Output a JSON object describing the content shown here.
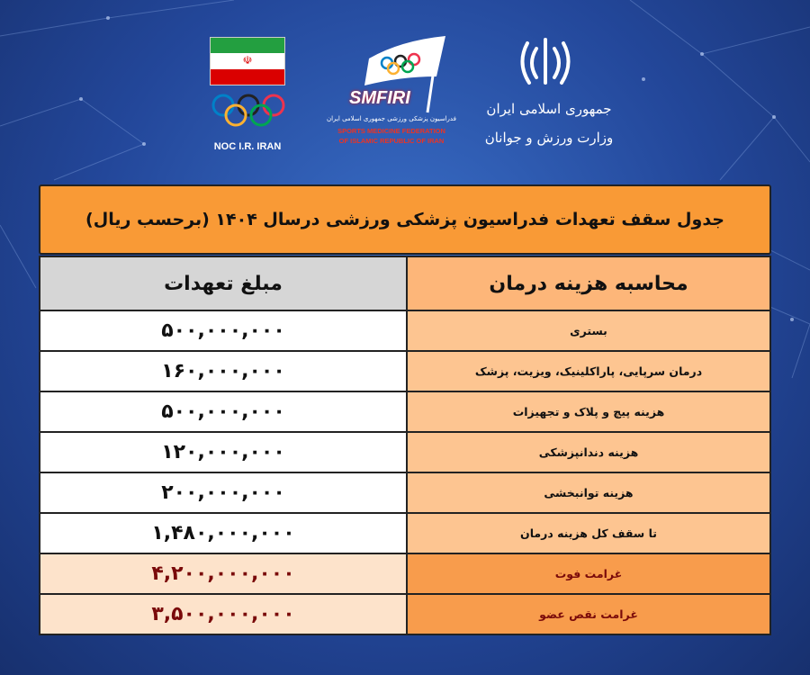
{
  "logos": {
    "noc_label": "NOC I.R. IRAN",
    "smfiri_label": "SMFIRI",
    "smfiri_persian": "فدراسیون پزشکی ورزشی جمهوری اسلامی ایران",
    "smfiri_english_1": "SPORTS MEDICINE FEDERATION",
    "smfiri_english_2": "OF ISLAMIC REPUBLIC OF IRAN",
    "republic": "جمهوری اسلامی ایران",
    "ministry": "وزارت ورزش و جوانان"
  },
  "colors": {
    "header": "#f99a36",
    "label_cell": "#fdc591",
    "penalty_text": "#7a0a0a"
  },
  "table": {
    "title": "جدول سقف تعهدات فدراسیون پزشکی ورزشی درسال ۱۴۰۴ (برحسب ریال)",
    "headers": {
      "label": "محاسبه هزینه درمان",
      "value": "مبلغ تعهدات"
    },
    "rows": [
      {
        "label": "بستری",
        "value": "۵۰۰,۰۰۰,۰۰۰"
      },
      {
        "label": "درمان سرپایی، پاراکلینیک، ویزیت، پزشک",
        "value": "۱۶۰,۰۰۰,۰۰۰"
      },
      {
        "label": "هزینه پیچ و پلاک و تجهیزات",
        "value": "۵۰۰,۰۰۰,۰۰۰"
      },
      {
        "label": "هزینه دندانپزشکی",
        "value": "۱۲۰,۰۰۰,۰۰۰"
      },
      {
        "label": "هزینه توانبخشی",
        "value": "۲۰۰,۰۰۰,۰۰۰"
      },
      {
        "label": "تا سقف کل هزینه درمان",
        "value": "۱,۴۸۰,۰۰۰,۰۰۰"
      },
      {
        "label": "غرامت فوت",
        "value": "۴,۲۰۰,۰۰۰,۰۰۰"
      },
      {
        "label": "غرامت نقص عضو",
        "value": "۳,۵۰۰,۰۰۰,۰۰۰"
      }
    ]
  }
}
